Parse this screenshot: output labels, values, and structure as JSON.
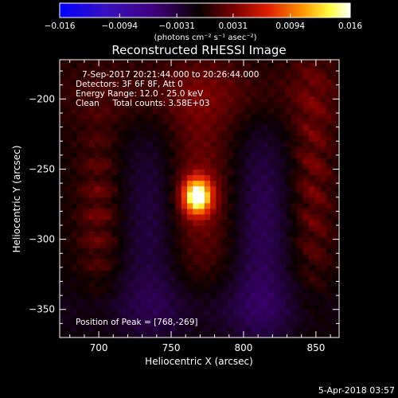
{
  "chart_data": {
    "type": "heatmap",
    "title": "Reconstructed RHESSI Image",
    "xlabel": "Heliocentric X (arcsec)",
    "ylabel": "Heliocentric Y (arcsec)",
    "xlim": [
      673,
      866
    ],
    "ylim": [
      -370,
      -172
    ],
    "x_ticks": [
      "700",
      "750",
      "800",
      "850"
    ],
    "x_tick_values": [
      700,
      750,
      800,
      850
    ],
    "y_ticks": [
      "-200",
      "-250",
      "-300",
      "-350"
    ],
    "y_tick_values": [
      -200,
      -250,
      -300,
      -350
    ],
    "colorbar": {
      "min": -0.016,
      "max": 0.016,
      "tick_labels": [
        "-0.016",
        "-0.0094",
        "-0.0031",
        "0.0031",
        "0.0094",
        "0.016"
      ],
      "tick_values": [
        -0.016,
        -0.0094,
        -0.0031,
        0.0031,
        0.0094,
        0.016
      ],
      "units_label": "(photons cm⁻² s⁻¹ asec⁻²)",
      "colors": [
        "#0000ff",
        "#40007f",
        "#000000",
        "#7a0000",
        "#e02000",
        "#ff9a00",
        "#ffff40",
        "#ffffff"
      ]
    },
    "annotations": [
      "7-Sep-2017 20:21:44.000 to 20:26:44.000",
      "Detectors: 3F 6F 8F, Att 0",
      "Energy Range: 12.0 - 25.0 keV",
      "Clean     Total counts: 3.58E+03"
    ],
    "peak_label": "Position of Peak = [768,-269]",
    "peak": {
      "x": 768,
      "y": -269
    }
  },
  "timestamp": "5-Apr-2018 03:57"
}
